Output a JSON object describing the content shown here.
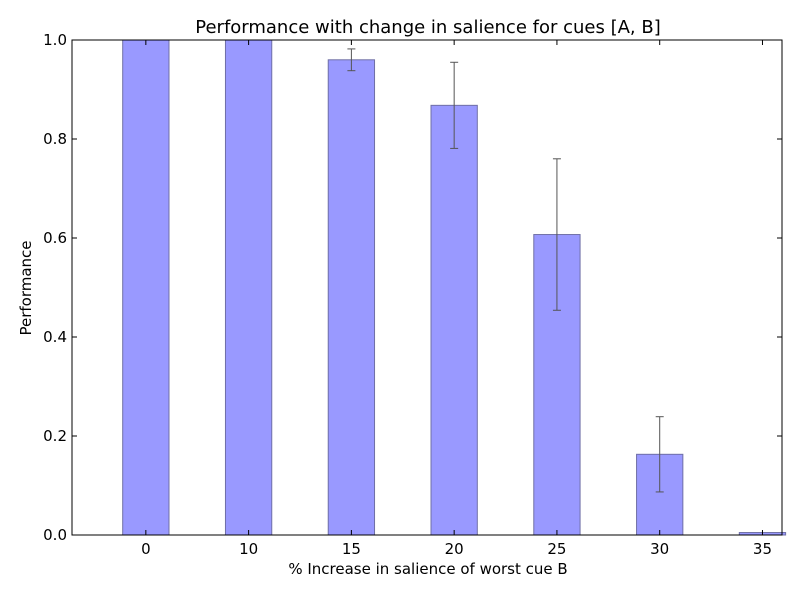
{
  "chart_data": {
    "type": "bar",
    "title": "Performance with change in salience for cues [A, B]",
    "xlabel": "% Increase in salience of worst cue B",
    "ylabel": "Performance",
    "categories": [
      "0",
      "10",
      "15",
      "20",
      "25",
      "30",
      "35"
    ],
    "values": [
      1.0,
      1.0,
      0.96,
      0.868,
      0.607,
      0.163,
      0.005
    ],
    "errors": [
      0.0,
      0.0,
      0.022,
      0.087,
      0.153,
      0.076,
      0.0
    ],
    "ylim": [
      0,
      1.0
    ],
    "yticks": [
      "0.0",
      "0.2",
      "0.4",
      "0.6",
      "0.8",
      "1.0"
    ],
    "grid": false,
    "colors": {
      "bar_fill": "#9999ff",
      "bar_edge": "#6f6fa6",
      "error_bar": "#555555",
      "axis": "#000000"
    }
  }
}
